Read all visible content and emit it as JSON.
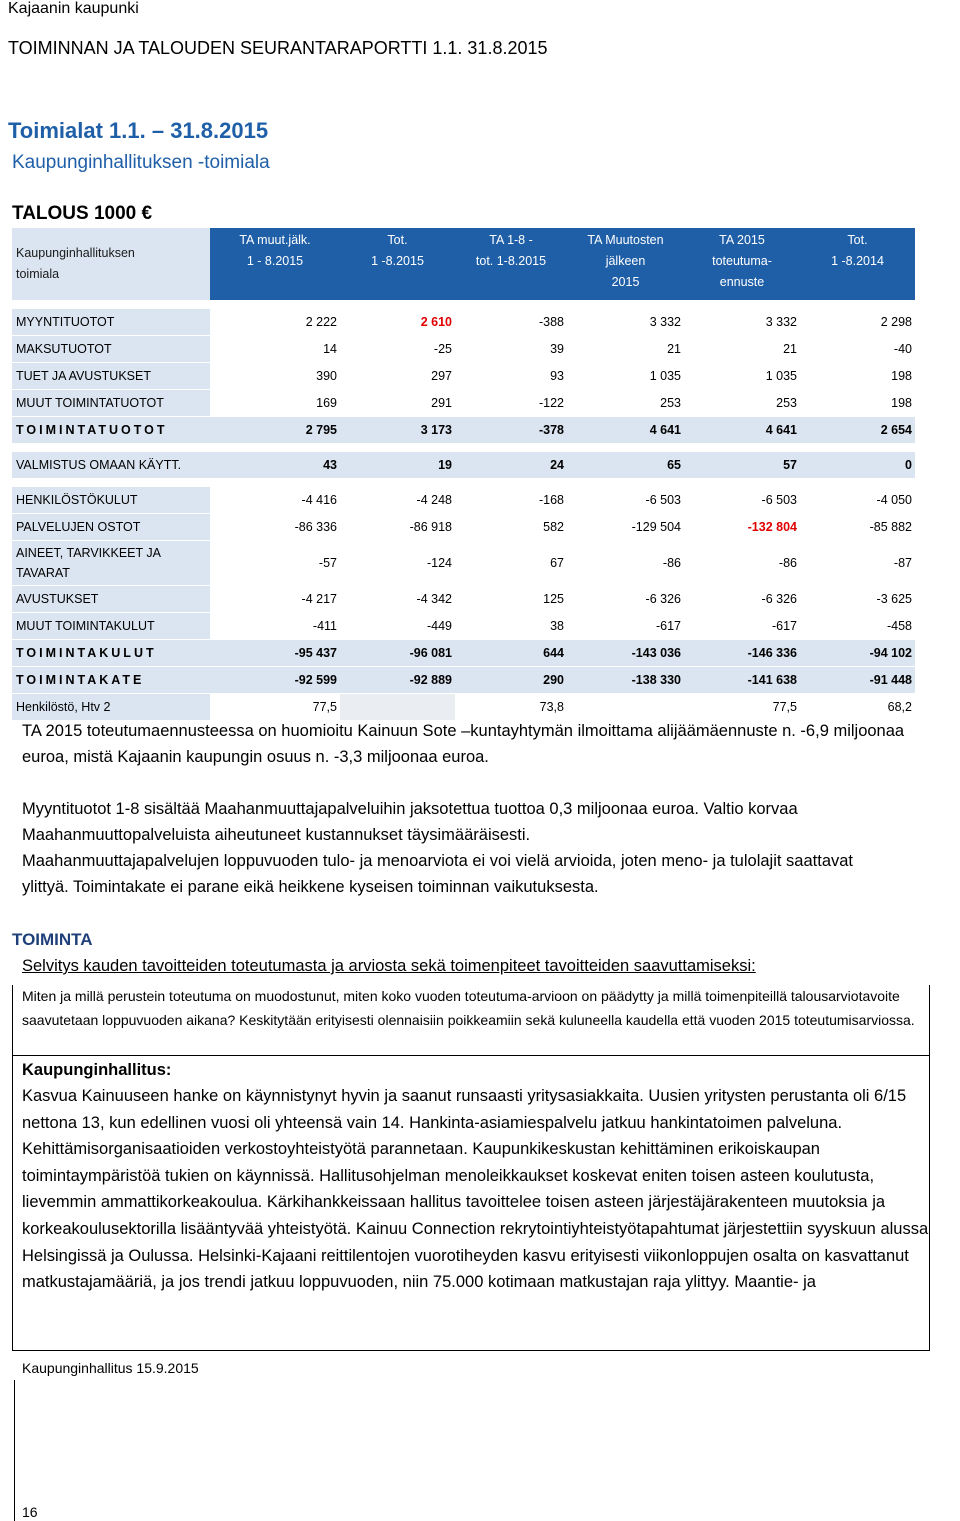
{
  "header": {
    "org": "Kajaanin kaupunki",
    "report": "TOIMINNAN JA TALOUDEN SEURANTARAPORTTI 1.1.  31.8.2015"
  },
  "section": {
    "title": "Toimialat 1.1. – 31.8.2015",
    "subtitle": "Kaupunginhallituksen -toimiala",
    "unit": "TALOUS 1000 €"
  },
  "table": {
    "header": [
      [
        "Kaupunginhallituksen",
        "toimiala"
      ],
      [
        "TA muut.jälk.",
        "1 - 8.2015"
      ],
      [
        "Tot.",
        "1 -8.2015"
      ],
      [
        "TA 1-8 -",
        "tot. 1-8.2015"
      ],
      [
        "TA Muutosten",
        "jälkeen",
        "2015"
      ],
      [
        "TA 2015",
        "toteutuma-",
        "ennuste"
      ],
      [
        "Tot.",
        "1 -8.2014"
      ]
    ],
    "rows": [
      [
        "MYYNTITUOTOT",
        "2 222",
        "2 610",
        "-388",
        "3 332",
        "3 332",
        "2 298"
      ],
      [
        "MAKSUTUOTOT",
        "14",
        "-25",
        "39",
        "21",
        "21",
        "-40"
      ],
      [
        "TUET JA AVUSTUKSET",
        "390",
        "297",
        "93",
        "1 035",
        "1 035",
        "198"
      ],
      [
        "MUUT TOIMINTATUOTOT",
        "169",
        "291",
        "-122",
        "253",
        "253",
        "198"
      ],
      [
        "TOIMINTATUOTOT",
        "2 795",
        "3 173",
        "-378",
        "4 641",
        "4 641",
        "2 654"
      ],
      [
        "VALMISTUS OMAAN KÄYTT.",
        "43",
        "19",
        "24",
        "65",
        "57",
        "0"
      ],
      [
        "HENKILÖSTÖKULUT",
        "-4 416",
        "-4 248",
        "-168",
        "-6 503",
        "-6 503",
        "-4 050"
      ],
      [
        "PALVELUJEN OSTOT",
        "-86 336",
        "-86 918",
        "582",
        "-129 504",
        "-132 804",
        "-85 882"
      ],
      [
        "AINEET, TARVIKKEET JA TAVARAT",
        "-57",
        "-124",
        "67",
        "-86",
        "-86",
        "-87"
      ],
      [
        "AVUSTUKSET",
        "-4 217",
        "-4 342",
        "125",
        "-6 326",
        "-6 326",
        "-3 625"
      ],
      [
        "MUUT TOIMINTAKULUT",
        "-411",
        "-449",
        "38",
        "-617",
        "-617",
        "-458"
      ],
      [
        "TOIMINTAKULUT",
        "-95 437",
        "-96 081",
        "644",
        "-143 036",
        "-146 336",
        "-94 102"
      ],
      [
        "TOIMINTAKATE",
        "-92 599",
        "-92 889",
        "290",
        "-138 330",
        "-141 638",
        "-91 448"
      ],
      [
        "Henkilöstö, Htv 2",
        "77,5",
        null,
        "73,8",
        null,
        "77,5",
        "68,2"
      ]
    ]
  },
  "notes": [
    "TA 2015 toteutumaennusteessa on huomioitu Kainuun Sote –kuntayhtymän ilmoittama alijäämäennuste n. -6,9 miljoonaa euroa, mistä Kajaanin kaupungin osuus n. -3,3 miljoonaa euroa.",
    "Myyntituotot 1-8 sisältää Maahanmuuttajapalveluihin jaksotettua tuottoa 0,3 miljoonaa euroa. Valtio korvaa Maahanmuuttopalveluista aiheutuneet kustannukset täysimääräisesti.",
    "Maahanmuuttajapalvelujen loppuvuoden tulo- ja menoarviota ei voi vielä arvioida, joten meno- ja tulolajit saattavat ylittyä. Toimintakate ei parane eikä heikkene kyseisen toiminnan vaikutuksesta."
  ],
  "activity": {
    "heading": "TOIMINTA",
    "prompt": "Selvitys kauden tavoitteiden toteutumasta ja arviosta sekä toimenpiteet tavoitteiden saavuttamiseksi:",
    "question": "Miten ja millä perustein toteutuma on muodostunut, miten koko vuoden toteutuma-arvioon on päädytty ja millä toimenpiteillä talousarviotavoite saavutetaan loppuvuoden aikana? Keskitytään erityisesti olennaisiin poikkeamiin sekä kuluneella kaudella että vuoden 2015 toteutumisarviossa.",
    "subheading": "Kaupunginhallitus:",
    "body": "Kasvua Kainuuseen hanke on käynnistynyt hyvin ja saanut runsaasti yritysasiakkaita. Uusien yritysten perustanta oli 6/15 nettona 13, kun edellinen vuosi oli yhteensä vain 14. Hankinta-asiamiespalvelu jatkuu hankintatoimen palveluna. Kehittämisorganisaatioiden verkostoyhteistyötä parannetaan. Kaupunkikeskustan kehittäminen erikoiskaupan toimintaympäristöä tukien on käynnissä. Hallitusohjelman menoleikkaukset koskevat eniten toisen asteen koulutusta, lievemmin ammattikorkeakoulua. Kärkihankkeissaan hallitus tavoittelee toisen asteen järjestäjärakenteen muutoksia ja korkeakoulusektorilla lisääntyvää yhteistyötä. Kainuu Connection rekrytointiyhteistyötapahtumat järjestettiin syyskuun alussa Helsingissä ja Oulussa. Helsinki-Kajaani reittilentojen vuorotiheyden kasvu erityisesti viikonloppujen osalta on kasvattanut matkustajamääriä, ja jos trendi jatkuu loppuvuoden, niin 75.000 kotimaan matkustajan raja ylittyy. Maantie- ja"
  },
  "footer": {
    "left": "Kaupunginhallitus 15.9.2015",
    "page": "16"
  }
}
